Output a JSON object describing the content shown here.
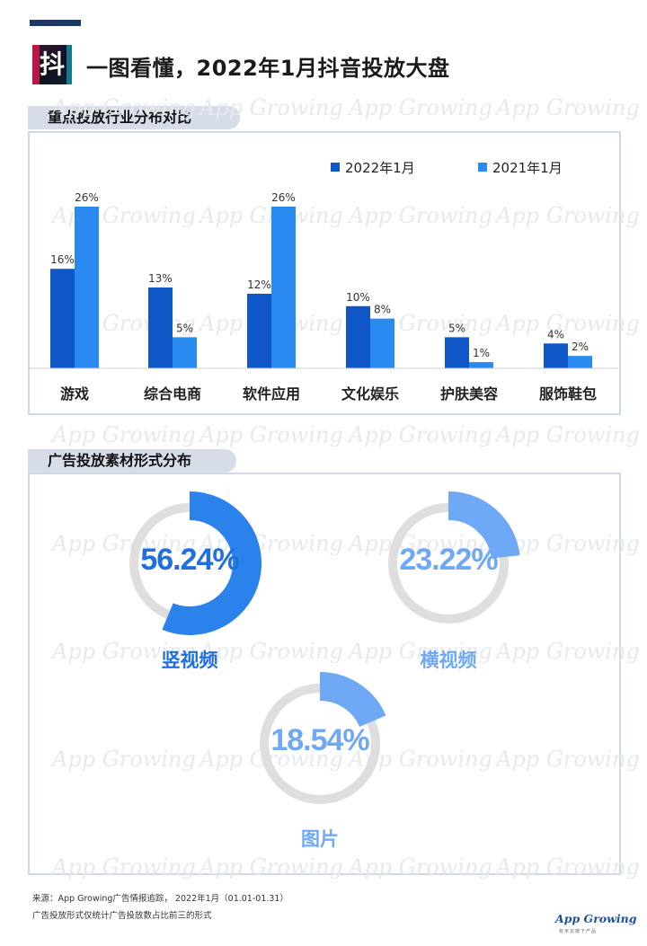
{
  "header": {
    "logo_char": "抖",
    "title": "一图看懂，2022年1月抖音投放大盘"
  },
  "sections": {
    "industry": "重点投放行业分布对比",
    "format": "广告投放素材形式分布"
  },
  "watermark_text": "App Growing",
  "chart_data": [
    {
      "type": "bar",
      "title": "重点投放行业分布对比",
      "categories": [
        "游戏",
        "综合电商",
        "软件应用",
        "文化娱乐",
        "护肤美容",
        "服饰鞋包"
      ],
      "series": [
        {
          "name": "2022年1月",
          "values": [
            16,
            13,
            12,
            10,
            5,
            4
          ],
          "labels": [
            "16%",
            "13%",
            "12%",
            "10%",
            "5%",
            "4%"
          ],
          "color": "#0f56c6"
        },
        {
          "name": "2021年1月",
          "values": [
            26,
            5,
            26,
            8,
            1,
            2
          ],
          "labels": [
            "26%",
            "5%",
            "26%",
            "8%",
            "1%",
            "2%"
          ],
          "color": "#2b8af0"
        }
      ],
      "ylim": [
        0,
        28
      ],
      "legend": "top-right",
      "grid": false
    },
    {
      "type": "pie",
      "title": "广告投放素材形式分布",
      "categories": [
        "竖视频",
        "横视频",
        "图片"
      ],
      "values": [
        56.24,
        23.22,
        18.54
      ],
      "labels": [
        "56.24%",
        "23.22%",
        "18.54%"
      ],
      "colors": [
        "#2b82ea",
        "#6fa8f5",
        "#6fa8f5"
      ],
      "track_color": "#dedede"
    }
  ],
  "footer": {
    "source": "来源：App Growing广告情报追踪， 2022年1月（01.01-01.31）",
    "note": "广告投放形式仅统计广告投放数占比前三的形式",
    "brand": "App Growing",
    "brand_sub": "有米云旗下产品"
  }
}
